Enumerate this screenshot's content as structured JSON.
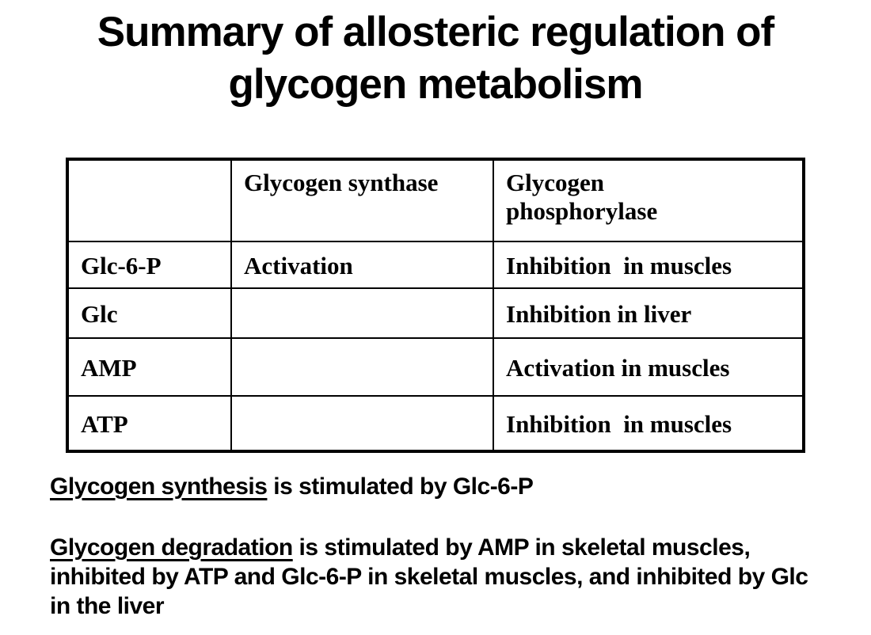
{
  "title": "Summary of allosteric regulation of glycogen metabolism",
  "table": {
    "headers": [
      "",
      "Glycogen synthase",
      "Glycogen phosphorylase"
    ],
    "rows": [
      {
        "effector": "Glc-6-P",
        "synthase": "Activation",
        "phosphorylase": "Inhibition  in muscles"
      },
      {
        "effector": "Glc",
        "synthase": "",
        "phosphorylase": "Inhibition in liver"
      },
      {
        "effector": "AMP",
        "synthase": "",
        "phosphorylase": "Activation in muscles"
      },
      {
        "effector": "ATP",
        "synthase": "",
        "phosphorylase": "Inhibition  in muscles"
      }
    ]
  },
  "notes": [
    {
      "lead": "Glycogen synthesis",
      "rest": " is stimulated by Glc-6-P"
    },
    {
      "lead": "Glycogen degradation",
      "rest": " is stimulated by AMP in skeletal muscles, inhibited by ATP and Glc-6-P in skeletal muscles, and inhibited by Glc in the liver"
    }
  ],
  "colors": {
    "text": "#000000",
    "background": "#ffffff",
    "border": "#000000"
  }
}
